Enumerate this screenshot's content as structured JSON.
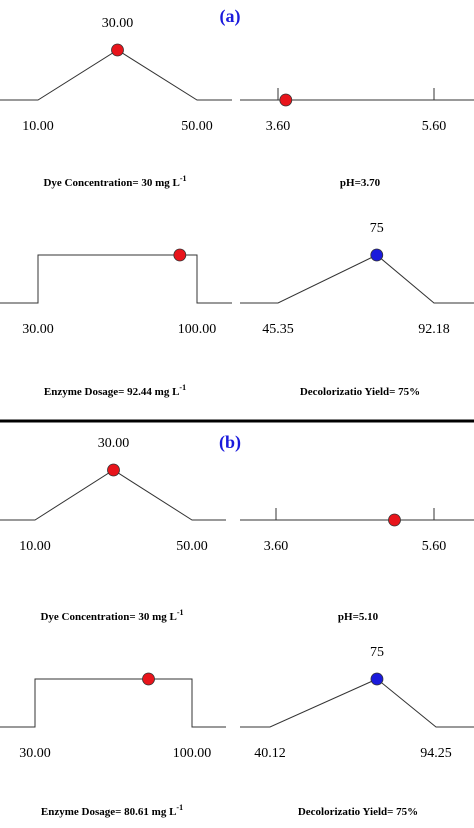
{
  "panels": [
    {
      "title": "(a)",
      "title_color": "#1a1adc",
      "ramps": [
        {
          "shape": "peak",
          "low": {
            "value": 10,
            "label": "10.00"
          },
          "high": {
            "value": 50,
            "label": "50.00"
          },
          "target": {
            "value": 30,
            "label": "30.00"
          },
          "value": 30,
          "dot_color": "#e8141b",
          "caption": "Dye Concentration= 30 mg L",
          "caption_sup": "-1"
        },
        {
          "shape": "flat",
          "low": {
            "value": 3.6,
            "label": "3.60"
          },
          "high": {
            "value": 5.6,
            "label": "5.60"
          },
          "value": 3.7,
          "dot_color": "#e8141b",
          "caption": "pH=3.70"
        },
        {
          "shape": "plateau",
          "low": {
            "value": 30,
            "label": "30.00"
          },
          "high": {
            "value": 100,
            "label": "100.00"
          },
          "value": 92.44,
          "dot_color": "#e8141b",
          "caption": "Enzyme Dosage= 92.44 mg L",
          "caption_sup": "-1"
        },
        {
          "shape": "peak",
          "low": {
            "value": 45.35,
            "label": "45.35"
          },
          "high": {
            "value": 92.18,
            "label": "92.18"
          },
          "target": {
            "value": 75,
            "label": "75"
          },
          "value": 75,
          "dot_color": "#1a1adc",
          "caption": "Decolorizatio Yield= 75%"
        }
      ]
    },
    {
      "title": "(b)",
      "title_color": "#1a1adc",
      "ramps": [
        {
          "shape": "peak",
          "low": {
            "value": 10,
            "label": "10.00"
          },
          "high": {
            "value": 50,
            "label": "50.00"
          },
          "target": {
            "value": 30,
            "label": "30.00"
          },
          "value": 30,
          "dot_color": "#e8141b",
          "caption": "Dye Concentration= 30 mg L",
          "caption_sup": "-1"
        },
        {
          "shape": "flat",
          "low": {
            "value": 3.6,
            "label": "3.60"
          },
          "high": {
            "value": 5.6,
            "label": "5.60"
          },
          "value": 5.1,
          "dot_color": "#e8141b",
          "caption": "pH=5.10"
        },
        {
          "shape": "plateau",
          "low": {
            "value": 30,
            "label": "30.00"
          },
          "high": {
            "value": 100,
            "label": "100.00"
          },
          "value": 80.61,
          "dot_color": "#e8141b",
          "caption": "Enzyme Dosage= 80.61 mg L",
          "caption_sup": "-1"
        },
        {
          "shape": "peak",
          "low": {
            "value": 40.12,
            "label": "40.12"
          },
          "high": {
            "value": 94.25,
            "label": "94.25"
          },
          "target": {
            "value": 75,
            "label": "75"
          },
          "value": 75,
          "dot_color": "#1a1adc",
          "caption": "Decolorizatio Yield= 75%"
        }
      ]
    }
  ]
}
